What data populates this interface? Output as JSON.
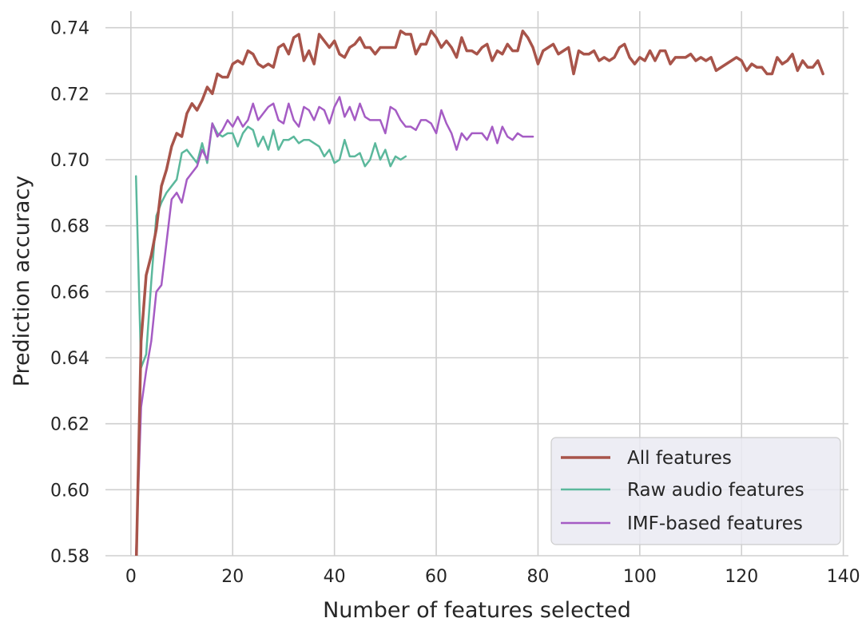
{
  "chart_data": {
    "type": "line",
    "title": "",
    "xlabel": "Number of features selected",
    "ylabel": "Prediction accuracy",
    "xlim": [
      -5,
      141
    ],
    "ylim": [
      0.58,
      0.745
    ],
    "xticks": [
      0,
      20,
      40,
      60,
      80,
      100,
      120,
      140
    ],
    "yticks": [
      0.58,
      0.6,
      0.62,
      0.64,
      0.66,
      0.68,
      0.7,
      0.72,
      0.74
    ],
    "grid": true,
    "legend_position": "bottom-right",
    "series": [
      {
        "name": "All features",
        "color": "#a8544a",
        "x_start": 1,
        "values": [
          0.574,
          0.645,
          0.665,
          0.671,
          0.679,
          0.692,
          0.697,
          0.704,
          0.708,
          0.707,
          0.714,
          0.717,
          0.715,
          0.718,
          0.722,
          0.72,
          0.726,
          0.725,
          0.725,
          0.729,
          0.73,
          0.729,
          0.733,
          0.732,
          0.729,
          0.728,
          0.729,
          0.728,
          0.734,
          0.735,
          0.732,
          0.737,
          0.738,
          0.73,
          0.733,
          0.729,
          0.738,
          0.736,
          0.734,
          0.736,
          0.732,
          0.731,
          0.734,
          0.735,
          0.737,
          0.734,
          0.734,
          0.732,
          0.734,
          0.734,
          0.734,
          0.734,
          0.739,
          0.738,
          0.738,
          0.732,
          0.735,
          0.735,
          0.739,
          0.737,
          0.734,
          0.736,
          0.734,
          0.731,
          0.737,
          0.733,
          0.733,
          0.732,
          0.734,
          0.735,
          0.73,
          0.733,
          0.732,
          0.735,
          0.733,
          0.733,
          0.739,
          0.737,
          0.734,
          0.729,
          0.733,
          0.734,
          0.735,
          0.732,
          0.733,
          0.734,
          0.726,
          0.733,
          0.732,
          0.732,
          0.733,
          0.73,
          0.731,
          0.73,
          0.731,
          0.734,
          0.735,
          0.731,
          0.729,
          0.731,
          0.73,
          0.733,
          0.73,
          0.733,
          0.733,
          0.729,
          0.731,
          0.731,
          0.731,
          0.732,
          0.73,
          0.731,
          0.73,
          0.731,
          0.727,
          0.728,
          0.729,
          0.73,
          0.731,
          0.73,
          0.727,
          0.729,
          0.728,
          0.728,
          0.726,
          0.726,
          0.731,
          0.729,
          0.73,
          0.732,
          0.727,
          0.73,
          0.728,
          0.728,
          0.73,
          0.726
        ]
      },
      {
        "name": "Raw audio features",
        "color": "#5bb89c",
        "x_start": 1,
        "values": [
          0.695,
          0.637,
          0.641,
          0.663,
          0.683,
          0.687,
          0.69,
          0.692,
          0.694,
          0.702,
          0.703,
          0.701,
          0.699,
          0.705,
          0.699,
          0.711,
          0.708,
          0.707,
          0.708,
          0.708,
          0.704,
          0.708,
          0.71,
          0.709,
          0.704,
          0.707,
          0.703,
          0.709,
          0.703,
          0.706,
          0.706,
          0.707,
          0.705,
          0.706,
          0.706,
          0.705,
          0.704,
          0.701,
          0.703,
          0.699,
          0.7,
          0.706,
          0.701,
          0.701,
          0.702,
          0.698,
          0.7,
          0.705,
          0.7,
          0.703,
          0.698,
          0.701,
          0.7,
          0.701
        ]
      },
      {
        "name": "IMF-based features",
        "color": "#a55cc4",
        "x_start": 1,
        "values": [
          0.58,
          0.625,
          0.636,
          0.645,
          0.66,
          0.662,
          0.675,
          0.688,
          0.69,
          0.687,
          0.694,
          0.696,
          0.698,
          0.703,
          0.7,
          0.711,
          0.707,
          0.709,
          0.712,
          0.71,
          0.713,
          0.71,
          0.712,
          0.717,
          0.712,
          0.714,
          0.716,
          0.717,
          0.712,
          0.711,
          0.717,
          0.712,
          0.71,
          0.716,
          0.715,
          0.712,
          0.716,
          0.715,
          0.711,
          0.716,
          0.719,
          0.713,
          0.716,
          0.712,
          0.717,
          0.713,
          0.712,
          0.712,
          0.712,
          0.708,
          0.716,
          0.715,
          0.712,
          0.71,
          0.71,
          0.709,
          0.712,
          0.712,
          0.711,
          0.708,
          0.715,
          0.711,
          0.708,
          0.703,
          0.708,
          0.706,
          0.708,
          0.708,
          0.708,
          0.706,
          0.71,
          0.705,
          0.71,
          0.707,
          0.706,
          0.708,
          0.707,
          0.707,
          0.707
        ]
      }
    ]
  }
}
